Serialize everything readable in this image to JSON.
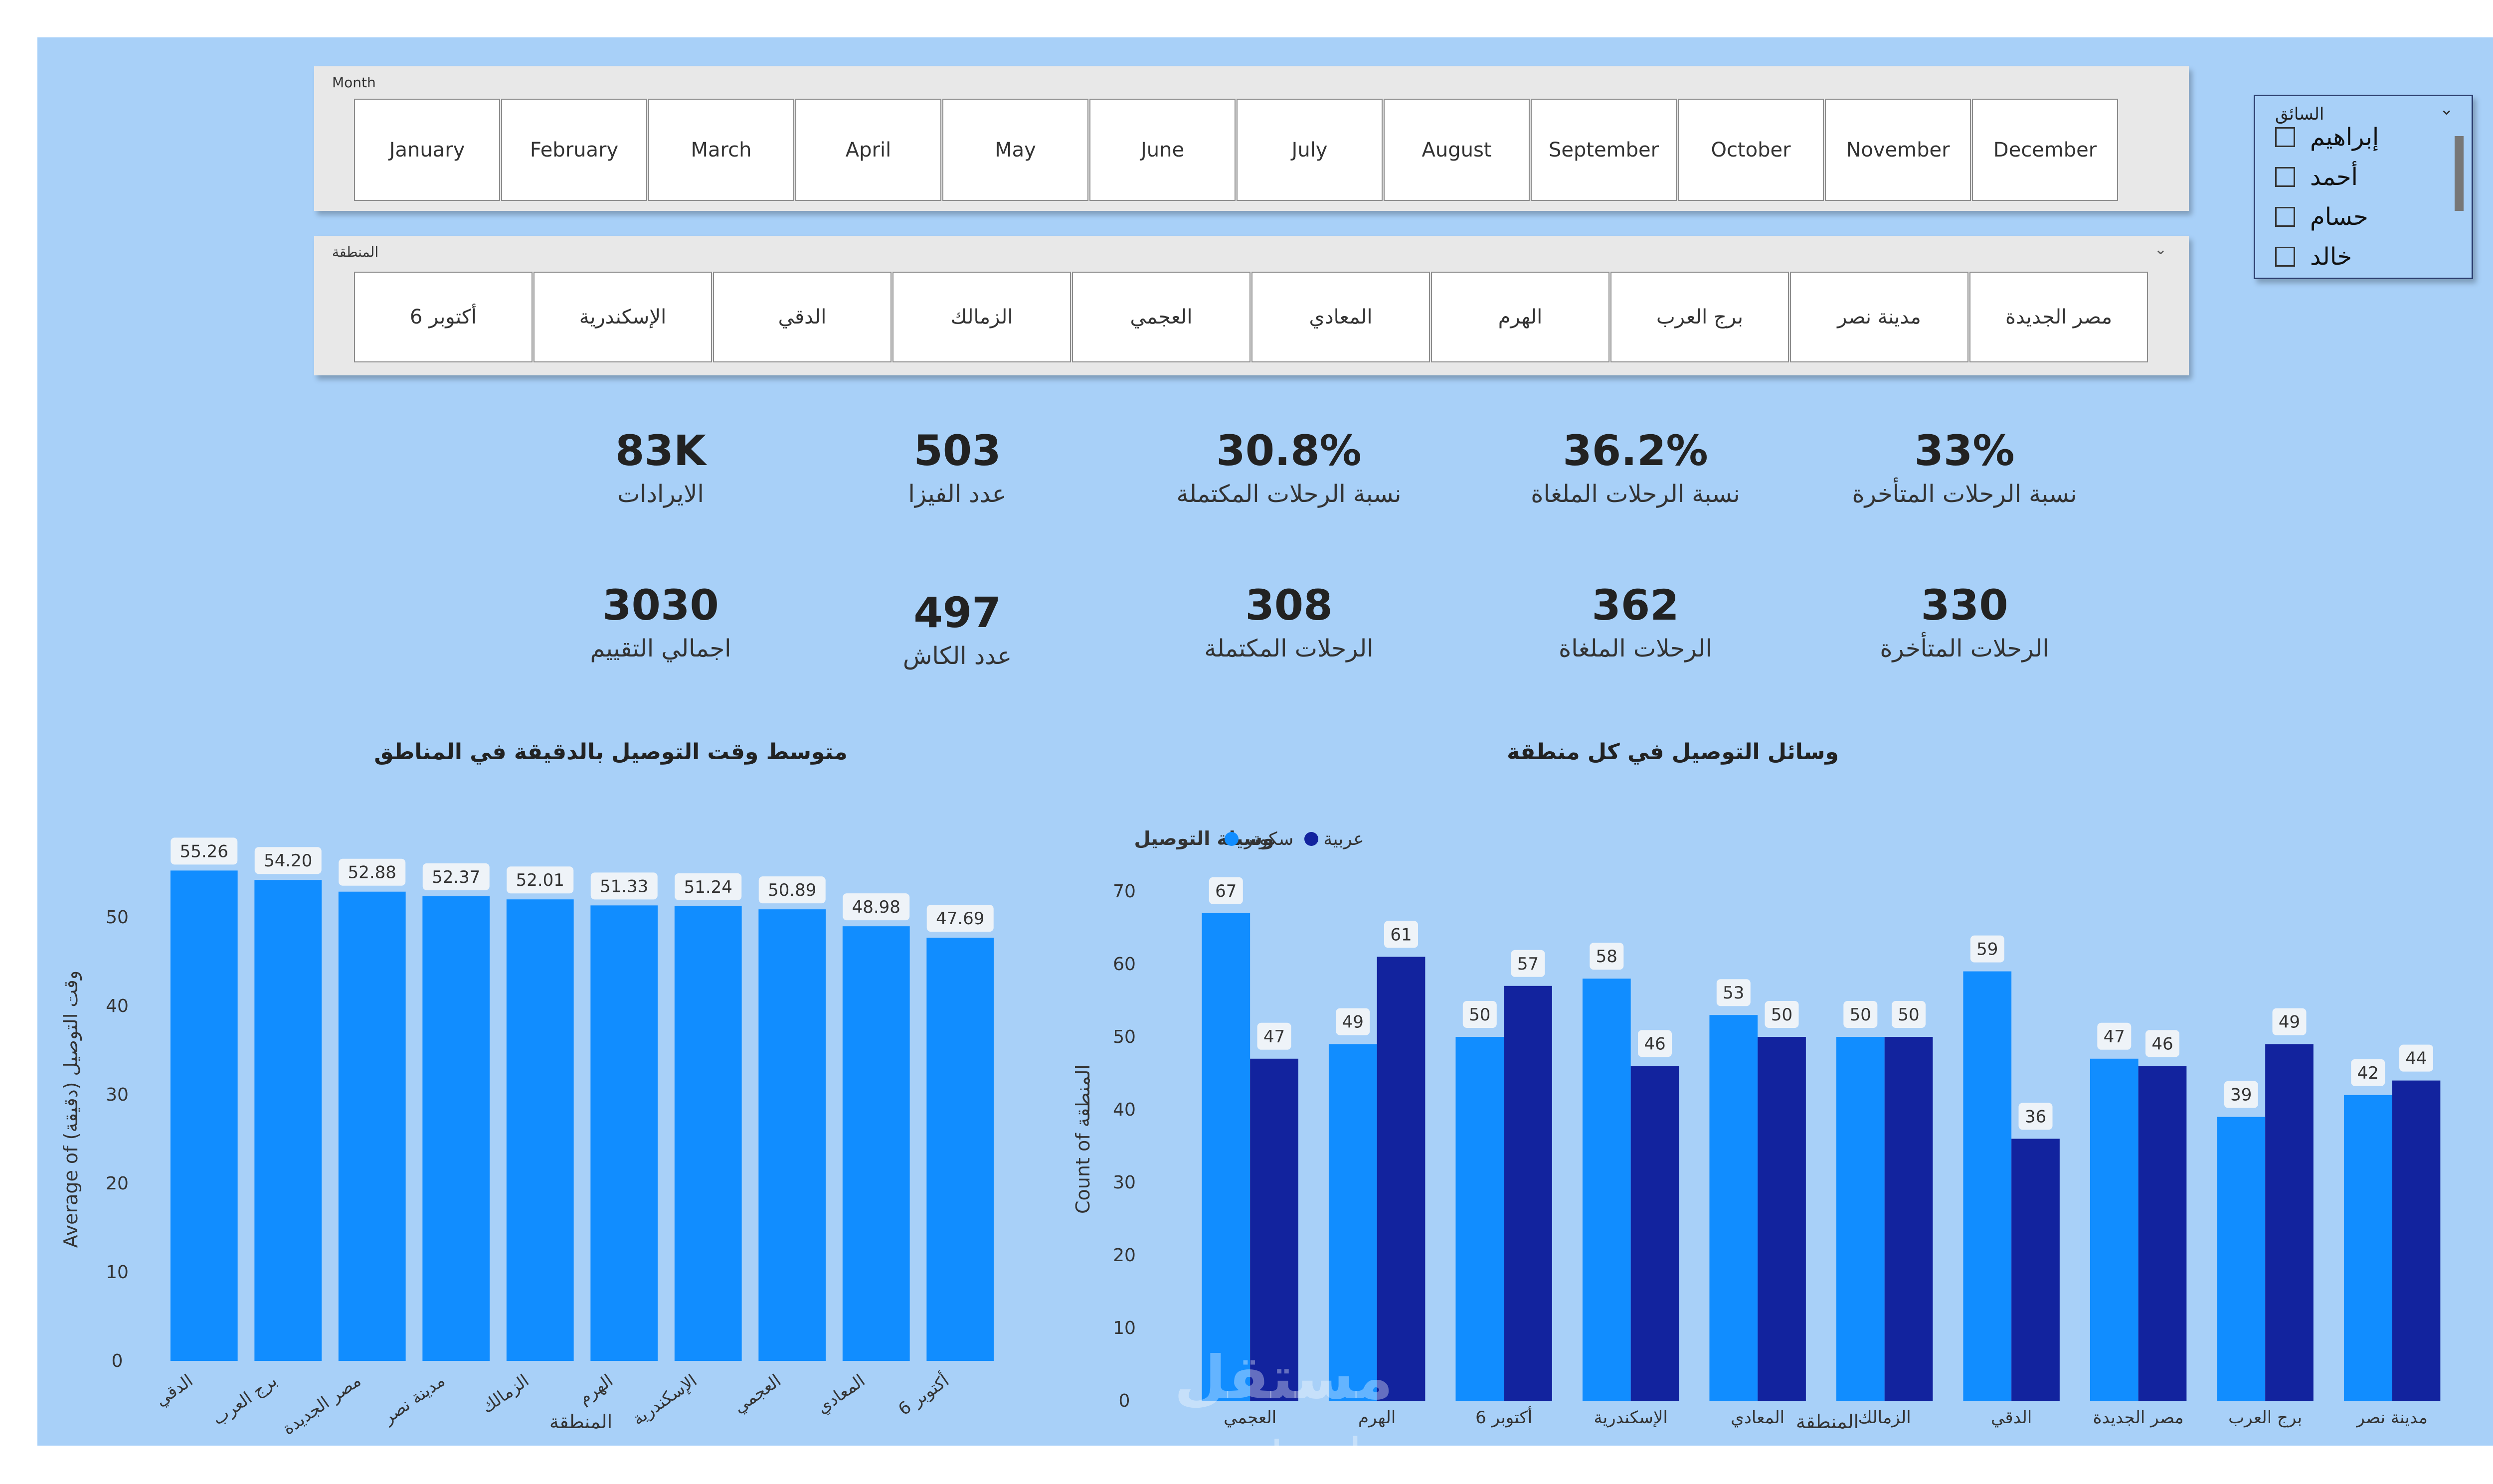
{
  "month_slicer": {
    "title": "Month",
    "items": [
      "January",
      "February",
      "March",
      "April",
      "May",
      "June",
      "July",
      "August",
      "September",
      "October",
      "November",
      "December"
    ]
  },
  "region_slicer": {
    "title": "المنطقة",
    "items": [
      "أكتوبر 6",
      "الإسكندرية",
      "الدقي",
      "الزمالك",
      "العجمي",
      "المعادي",
      "الهرم",
      "برج العرب",
      "مدينة نصر",
      "مصر الجديدة"
    ]
  },
  "driver_slicer": {
    "title": "السائق",
    "items": [
      "إبراهيم",
      "أحمد",
      "حسام",
      "خالد"
    ]
  },
  "kpis": [
    {
      "value": "83K",
      "label": "الايرادات"
    },
    {
      "value": "503",
      "label": "عدد الفيزا"
    },
    {
      "value": "30.8%",
      "label": "نسبة الرحلات المكتملة"
    },
    {
      "value": "36.2%",
      "label": "نسبة الرحلات الملغاة"
    },
    {
      "value": "33%",
      "label": "نسبة الرحلات المتأخرة"
    },
    {
      "value": "3030",
      "label": "اجمالي التقييم"
    },
    {
      "value": "497",
      "label": "عدد الكاش"
    },
    {
      "value": "308",
      "label": "الرحلات المكتملة"
    },
    {
      "value": "362",
      "label": "الرحلات الملغاة"
    },
    {
      "value": "330",
      "label": "الرحلات المتأخرة"
    }
  ],
  "colors": {
    "bar_light": "#118dff",
    "bar_dark": "#12239e",
    "background": "#a8d0f8"
  },
  "chart_data": [
    {
      "type": "bar",
      "title": "متوسط وقت التوصيل بالدقيقة في المناطق",
      "xlabel": "المنطقة",
      "ylabel": "Average of وقت التوصيل (دقيقة)",
      "categories": [
        "الدقي",
        "برج العرب",
        "مصر الجديدة",
        "مدينة نصر",
        "الزمالك",
        "الهرم",
        "الإسكندرية",
        "العجمي",
        "المعادي",
        "أكتوبر 6"
      ],
      "values": [
        55.26,
        54.2,
        52.88,
        52.37,
        52.01,
        51.33,
        51.24,
        50.89,
        48.98,
        47.69
      ],
      "value_labels": [
        "55.26",
        "54.20",
        "52.88",
        "52.37",
        "52.01",
        "51.33",
        "51.24",
        "50.89",
        "48.98",
        "47.69"
      ],
      "ylim": [
        0,
        60
      ],
      "yticks": [
        0,
        10,
        20,
        30,
        40,
        50
      ],
      "grid": false
    },
    {
      "type": "bar",
      "title": "وسائل التوصيل في كل منطقة",
      "xlabel": "المنطقة",
      "ylabel": "Count of المنطقة",
      "legend_title": "وسيلة التوصيل",
      "categories": [
        "العجمي",
        "الهرم",
        "أكتوبر 6",
        "الإسكندرية",
        "المعادي",
        "الزمالك",
        "الدقي",
        "مصر الجديدة",
        "برج العرب",
        "مدينة نصر"
      ],
      "series": [
        {
          "name": "سكوتر",
          "values": [
            67,
            49,
            50,
            58,
            53,
            50,
            59,
            47,
            39,
            42
          ]
        },
        {
          "name": "عربية",
          "values": [
            47,
            61,
            57,
            46,
            50,
            50,
            36,
            46,
            49,
            44
          ]
        }
      ],
      "ylim": [
        0,
        70
      ],
      "yticks": [
        0,
        10,
        20,
        30,
        40,
        50,
        60,
        70
      ],
      "grid": false
    }
  ],
  "watermark": {
    "line1": "مستقل",
    "line2": "mostaql.com"
  }
}
